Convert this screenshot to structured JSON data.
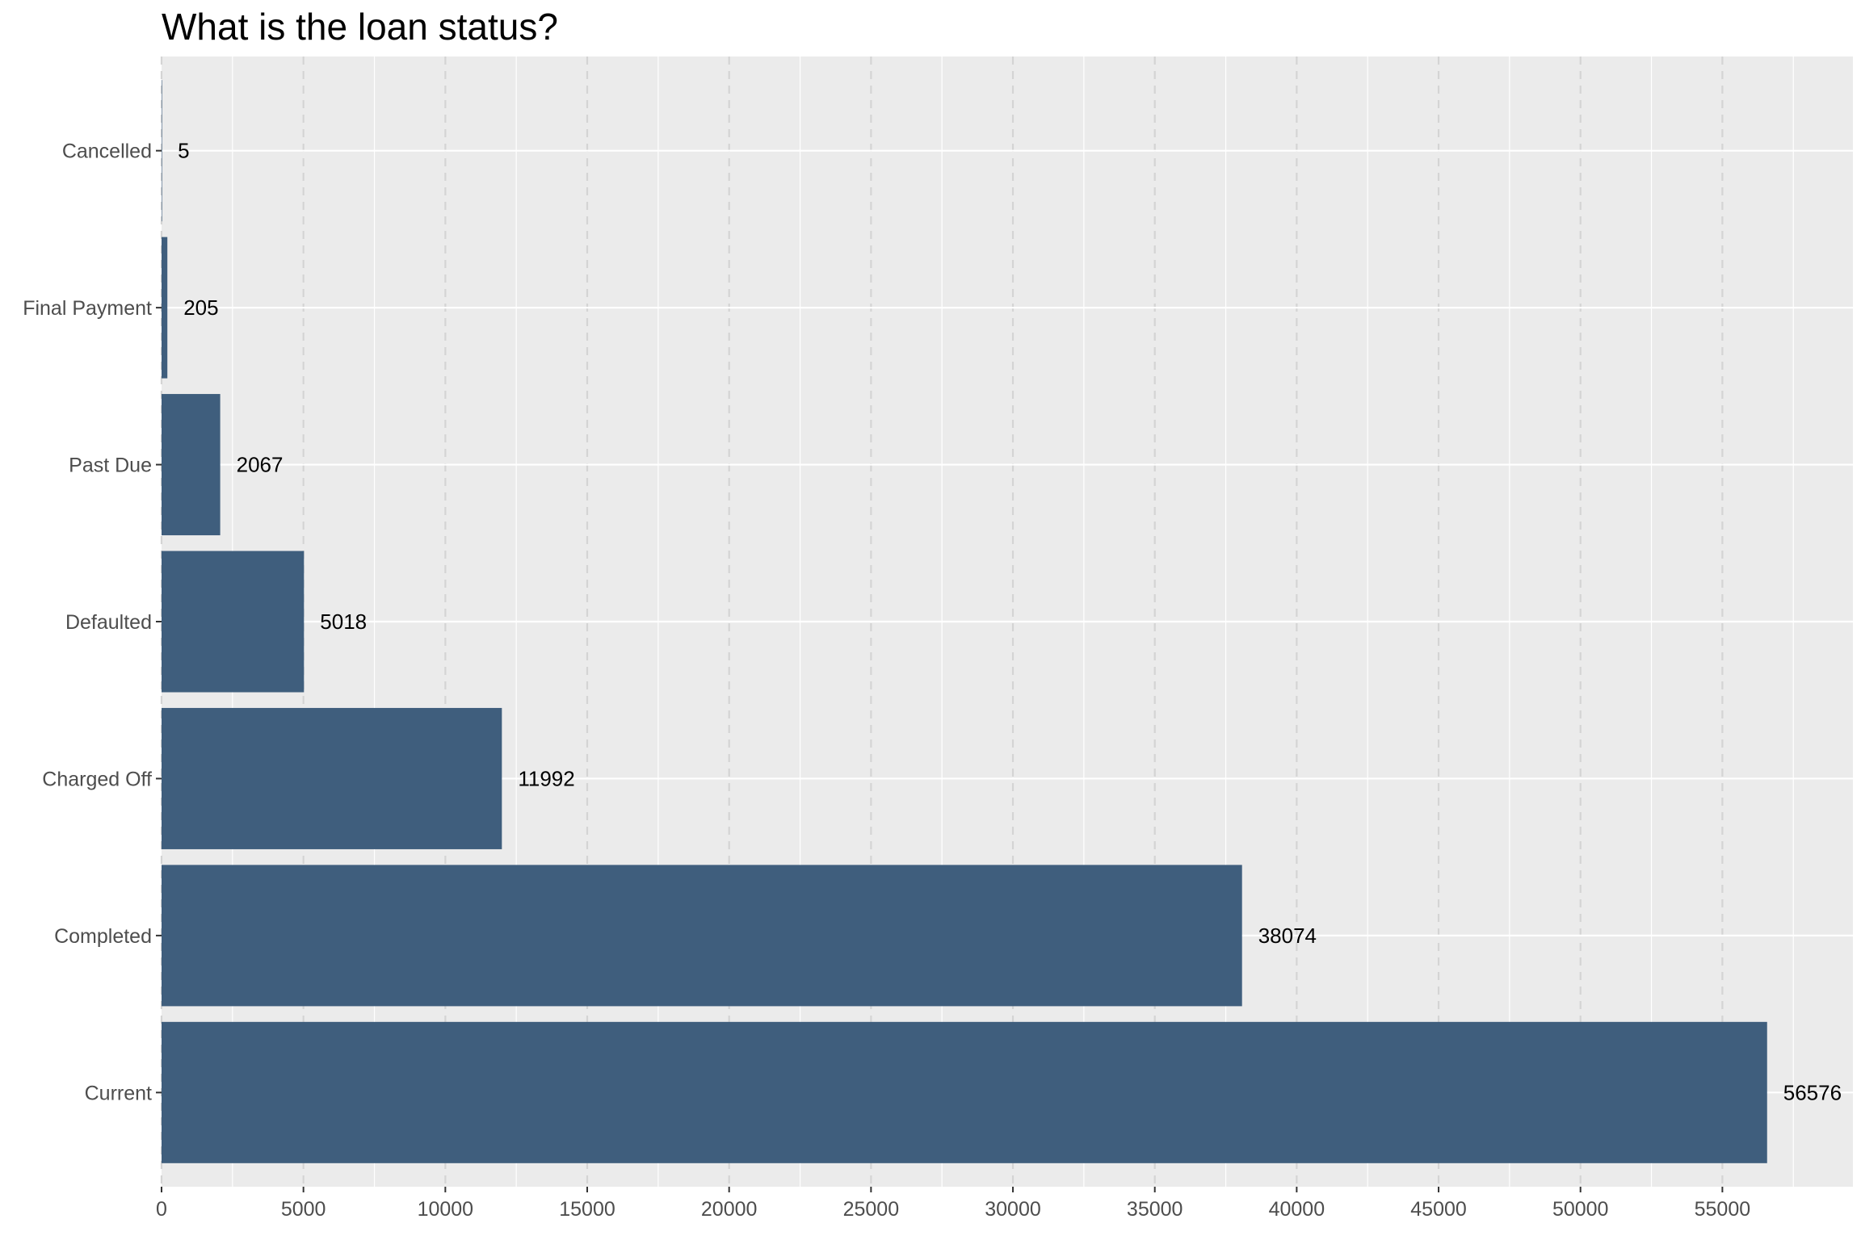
{
  "chart_data": {
    "type": "bar",
    "orientation": "horizontal",
    "title": "What is the loan status?",
    "xlabel": "",
    "ylabel": "",
    "categories": [
      "Current",
      "Completed",
      "Charged Off",
      "Defaulted",
      "Past Due",
      "Final Payment",
      "Cancelled"
    ],
    "values": [
      56576,
      38074,
      11992,
      5018,
      2067,
      205,
      5
    ],
    "data_labels": [
      "56576",
      "38074",
      "11992",
      "5018",
      "2067",
      "205",
      "5"
    ],
    "xlim": [
      0,
      59600
    ],
    "x_ticks": [
      0,
      5000,
      10000,
      15000,
      20000,
      25000,
      30000,
      35000,
      40000,
      45000,
      50000,
      55000
    ],
    "x_tick_labels": [
      "0",
      "5000",
      "10000",
      "15000",
      "20000",
      "25000",
      "30000",
      "35000",
      "40000",
      "45000",
      "50000",
      "55000"
    ],
    "x_minor_ticks": [
      2500,
      7500,
      12500,
      17500,
      22500,
      27500,
      32500,
      37500,
      42500,
      47500,
      52500,
      57500
    ],
    "grid": true,
    "legend": "none",
    "colors": {
      "bar": "#3f5e7d",
      "panel": "#ebebeb",
      "grid_major": "#ffffff",
      "grid_dashed": "#d4d4d4",
      "tick_text": "#4d4d4d",
      "label_text": "#000000"
    }
  }
}
